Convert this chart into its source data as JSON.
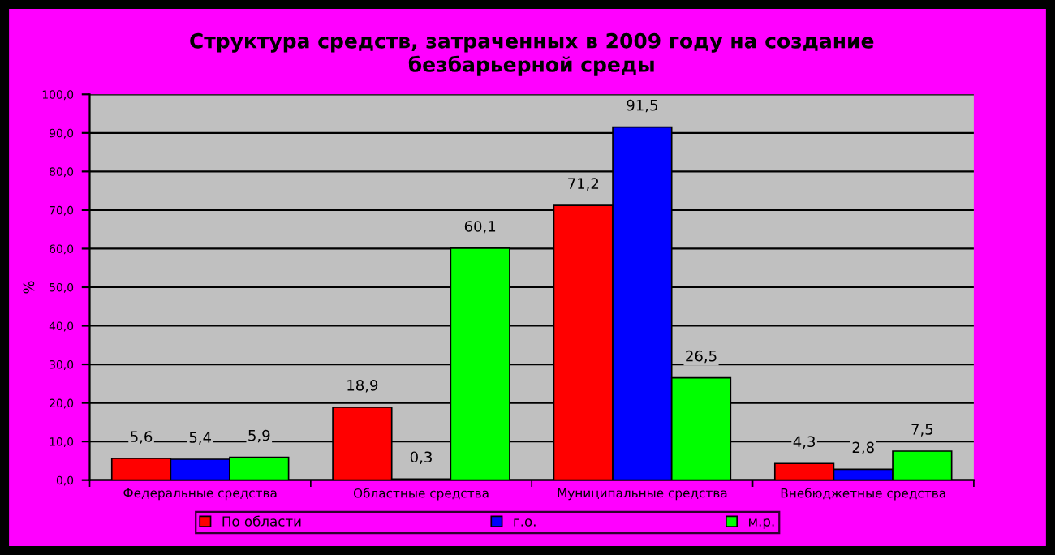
{
  "chart_data": {
    "type": "bar",
    "title": "Структура средств, затраченных в 2009 году на создание\nбезбарьерной среды",
    "ylabel": "%",
    "categories": [
      "Федеральные средства",
      "Областные средства",
      "Муниципальные средства",
      "Внебюджетные средства"
    ],
    "series": [
      {
        "name": "По области",
        "color": "#ff0000",
        "values": [
          5.6,
          18.9,
          71.2,
          4.3
        ],
        "value_labels": [
          "5,6",
          "18,9",
          "71,2",
          "4,3"
        ]
      },
      {
        "name": "г.о.",
        "color": "#0000ff",
        "values": [
          5.4,
          0.3,
          91.5,
          2.8
        ],
        "value_labels": [
          "5,4",
          "0,3",
          "91,5",
          "2,8"
        ]
      },
      {
        "name": "м.р.",
        "color": "#00ff00",
        "values": [
          5.9,
          60.1,
          26.5,
          7.5
        ],
        "value_labels": [
          "5,9",
          "60,1",
          "26,5",
          "7,5"
        ]
      }
    ],
    "ylim": [
      0,
      100
    ],
    "yticks": [
      {
        "value": 0,
        "label": "0,0"
      },
      {
        "value": 10,
        "label": "10,0"
      },
      {
        "value": 20,
        "label": "20,0"
      },
      {
        "value": 30,
        "label": "30,0"
      },
      {
        "value": 40,
        "label": "40,0"
      },
      {
        "value": 50,
        "label": "50,0"
      },
      {
        "value": 60,
        "label": "60,0"
      },
      {
        "value": 70,
        "label": "70,0"
      },
      {
        "value": 80,
        "label": "80,0"
      },
      {
        "value": 90,
        "label": "90,0"
      },
      {
        "value": 100,
        "label": "100,0"
      }
    ],
    "grid": "y",
    "legend": "bottom"
  }
}
